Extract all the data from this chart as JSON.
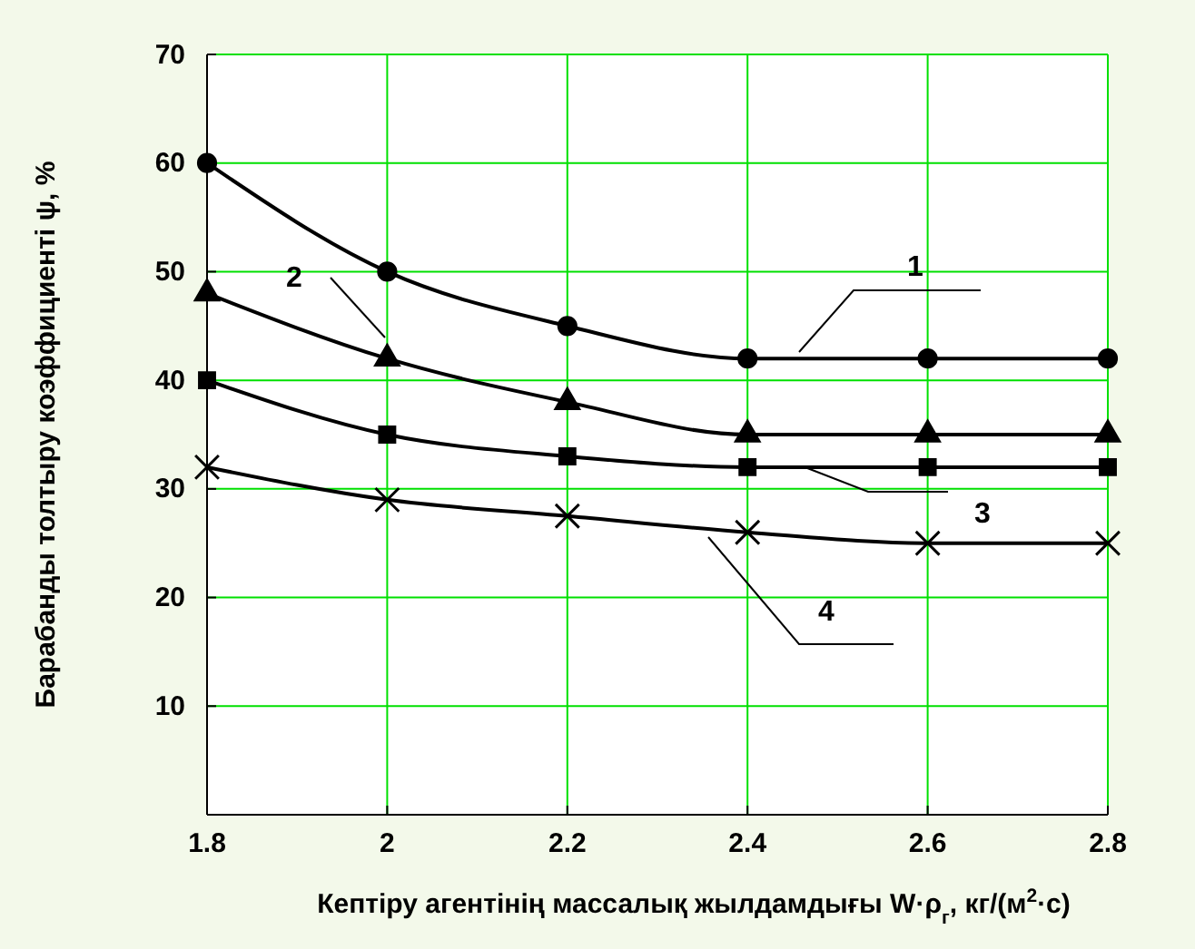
{
  "chart_data": {
    "type": "line",
    "xlabel": "Кептіру агентінің массалық жылдамдығы W·ρ$_{г}$, кг/(м$^{2}$·с)",
    "ylabel": "Барабанды толтыру коэффициенті ψ, %",
    "x": [
      1.8,
      2,
      2.2,
      2.4,
      2.6,
      2.8
    ],
    "series": [
      {
        "name": "1",
        "color": "#000000",
        "marker": "circle",
        "values": [
          60,
          50,
          45,
          42,
          42,
          42
        ]
      },
      {
        "name": "2",
        "color": "#000000",
        "marker": "triangle",
        "values": [
          48,
          42,
          38,
          35,
          35,
          35
        ]
      },
      {
        "name": "3",
        "color": "#000000",
        "marker": "square",
        "values": [
          40,
          35,
          33,
          32,
          32,
          32
        ]
      },
      {
        "name": "4",
        "color": "#000000",
        "marker": "cross",
        "values": [
          32,
          29,
          27.5,
          26,
          25,
          25
        ]
      }
    ],
    "xlim": [
      1.8,
      2.8
    ],
    "xticks": [
      1.8,
      {
        "value": 2,
        "label": "2"
      },
      2.2,
      2.4,
      2.6,
      2.8
    ],
    "ylim": [
      0,
      70
    ],
    "yticks": [
      {
        "value": 0,
        "label": null
      },
      10,
      20,
      30,
      40,
      50,
      60,
      70
    ],
    "grid": true,
    "line_style": "solid"
  }
}
